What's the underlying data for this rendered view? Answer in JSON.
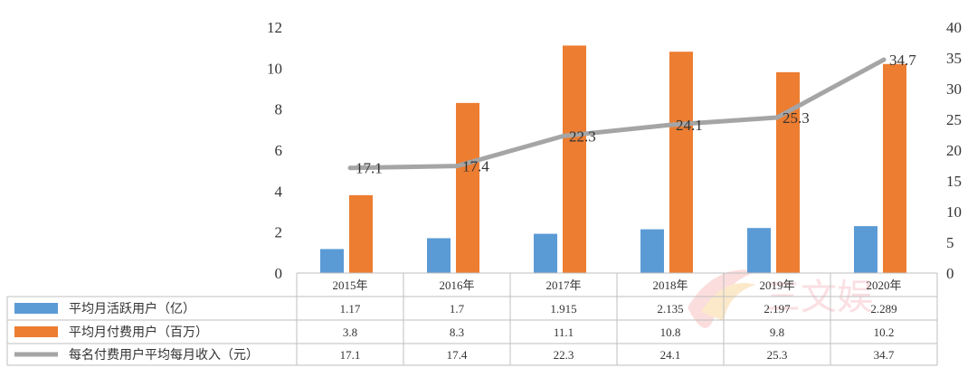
{
  "chart_data": {
    "type": "bar",
    "categories": [
      "2015年",
      "2016年",
      "2017年",
      "2018年",
      "2019年",
      "2020年"
    ],
    "series": [
      {
        "name": "平均月活跃用户（亿）",
        "type": "bar",
        "axis": "left",
        "color": "#5B9BD5",
        "values": [
          1.17,
          1.7,
          1.915,
          2.135,
          2.197,
          2.289
        ],
        "labels": [
          "1.17",
          "1.7",
          "1.915",
          "2.135",
          "2.197",
          "2.289"
        ]
      },
      {
        "name": "平均月付费用户（百万）",
        "type": "bar",
        "axis": "left",
        "color": "#ED7D31",
        "values": [
          3.8,
          8.3,
          11.1,
          10.8,
          9.8,
          10.2
        ],
        "labels": [
          "3.8",
          "8.3",
          "11.1",
          "10.8",
          "9.8",
          "10.2"
        ]
      },
      {
        "name": "每名付费用户平均每月收入（元）",
        "type": "line",
        "axis": "right",
        "color": "#A5A5A5",
        "values": [
          17.1,
          17.4,
          22.3,
          24.1,
          25.3,
          34.7
        ],
        "labels": [
          "17.1",
          "17.4",
          "22.3",
          "24.1",
          "25.3",
          "34.7"
        ]
      }
    ],
    "ylim": [
      0,
      12
    ],
    "yticks": [
      "0",
      "2",
      "4",
      "6",
      "8",
      "10",
      "12"
    ],
    "y2lim": [
      0,
      40
    ],
    "y2ticks": [
      "0",
      "5",
      "10",
      "15",
      "20",
      "25",
      "30",
      "35",
      "40"
    ],
    "data_table": true,
    "legend": "in-table",
    "grid": false,
    "watermark_text": "三文娱"
  }
}
